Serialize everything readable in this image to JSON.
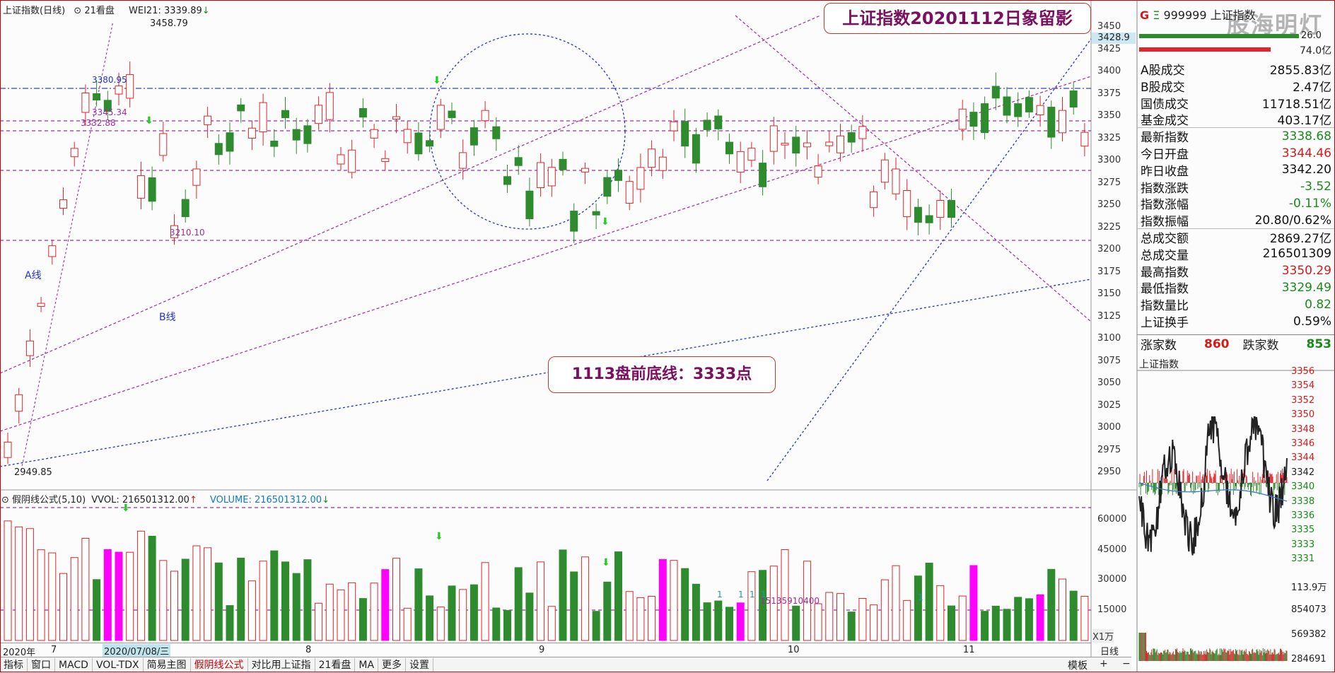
{
  "header": {
    "title": "上证指数(日线)",
    "view_toggle": "21看盘",
    "wei_label": "WEI21: 3339.89",
    "arrow": "↓"
  },
  "callouts": {
    "top": "上证指数20201112日象留影",
    "middle": "1113盘前底线：3333点"
  },
  "chart_annotations": {
    "high": "3458.79",
    "low": "2949.85",
    "lvl_3380": "3380.95",
    "lvl_3345": "3345.34",
    "lvl_3332": "3332.88",
    "lvl_3210": "3210.10",
    "line_a": "A线",
    "line_b": "B线",
    "current_price_tag": "3428.9"
  },
  "y_axis_main": [
    "3450",
    "3425",
    "3400",
    "3375",
    "3350",
    "3325",
    "3300",
    "3275",
    "3250",
    "3225",
    "3200",
    "3175",
    "3150",
    "3125",
    "3100",
    "3075",
    "3050",
    "3025",
    "3000",
    "2975",
    "2950"
  ],
  "volume_header": {
    "formula": "假阴线公式(5,10)",
    "vvol": "VVOL: 216501312.00",
    "vvol_arrow": "↑",
    "volume": "VOLUME: 216501312.00",
    "volume_arrow": "↓"
  },
  "volume_annotation": "15135910400",
  "volume_marks": [
    "1",
    "1",
    "1",
    "1",
    "1"
  ],
  "y_axis_vol": [
    "60000",
    "45000",
    "30000",
    "15000"
  ],
  "vol_unit": "X1万",
  "x_axis": {
    "year": "2020年",
    "months": [
      "7",
      "8",
      "9",
      "10",
      "11"
    ],
    "cursor_date": "2020/07/08/三",
    "period": "日线"
  },
  "tabs": [
    "指标",
    "窗口",
    "MACD",
    "VOL-TDX",
    "简易主图",
    "假阴线公式",
    "对比用上证指",
    "21看盘",
    "MA",
    "更多",
    "设置"
  ],
  "active_tab": "假阴线公式",
  "bottom_right": {
    "template": "模板",
    "plus": "+",
    "minus": "−"
  },
  "right_panel": {
    "g_icon": "G",
    "e_icon": "Ξ",
    "code": "999999",
    "name": "上证指数",
    "watermark": "股海明灯",
    "ratio_right_top": "26.0",
    "ratio_right": "74.0亿",
    "rows": [
      {
        "label": "A股成交",
        "value": "2855.83亿",
        "color": "#111"
      },
      {
        "label": "B股成交",
        "value": "2.47亿",
        "color": "#111"
      },
      {
        "label": "国债成交",
        "value": "11718.51亿",
        "color": "#111"
      },
      {
        "label": "基金成交",
        "value": "403.17亿",
        "color": "#111"
      },
      {
        "label": "最新指数",
        "value": "3338.68",
        "color": "#1a8a1a"
      },
      {
        "label": "今日开盘",
        "value": "3344.46",
        "color": "#d61a1a"
      },
      {
        "label": "昨日收盘",
        "value": "3342.20",
        "color": "#111"
      },
      {
        "label": "指数涨跌",
        "value": "-3.52",
        "color": "#1a8a1a"
      },
      {
        "label": "指数涨幅",
        "value": "-0.11%",
        "color": "#1a8a1a"
      },
      {
        "label": "指数振幅",
        "value": "20.80/0.62%",
        "color": "#111"
      },
      {
        "label": "总成交额",
        "value": "2869.27亿",
        "color": "#111"
      },
      {
        "label": "总成交量",
        "value": "216501309",
        "color": "#111"
      },
      {
        "label": "最高指数",
        "value": "3350.29",
        "color": "#d61a1a"
      },
      {
        "label": "最低指数",
        "value": "3329.49",
        "color": "#1a8a1a"
      },
      {
        "label": "指数量比",
        "value": "0.82",
        "color": "#1a8a1a"
      },
      {
        "label": "上证换手",
        "value": "0.59%",
        "color": "#111"
      }
    ],
    "up_label": "涨家数",
    "up_count": "860",
    "down_label": "跌家数",
    "down_count": "853",
    "mini_title": "上证指数",
    "mini_y_price": [
      "3356",
      "3354",
      "3352",
      "3350",
      "3348",
      "3346",
      "3344",
      "3342",
      "3340",
      "3338",
      "3336",
      "3335",
      "3333",
      "3331"
    ],
    "mini_y_vol": [
      "113.9万",
      "854073",
      "569382",
      "284691"
    ]
  },
  "colors": {
    "up": "#e0242a",
    "down": "#2e8b2e",
    "magenta": "#ff00ff",
    "purple_line": "#a02ca0",
    "blue_line": "#2233cc"
  }
}
